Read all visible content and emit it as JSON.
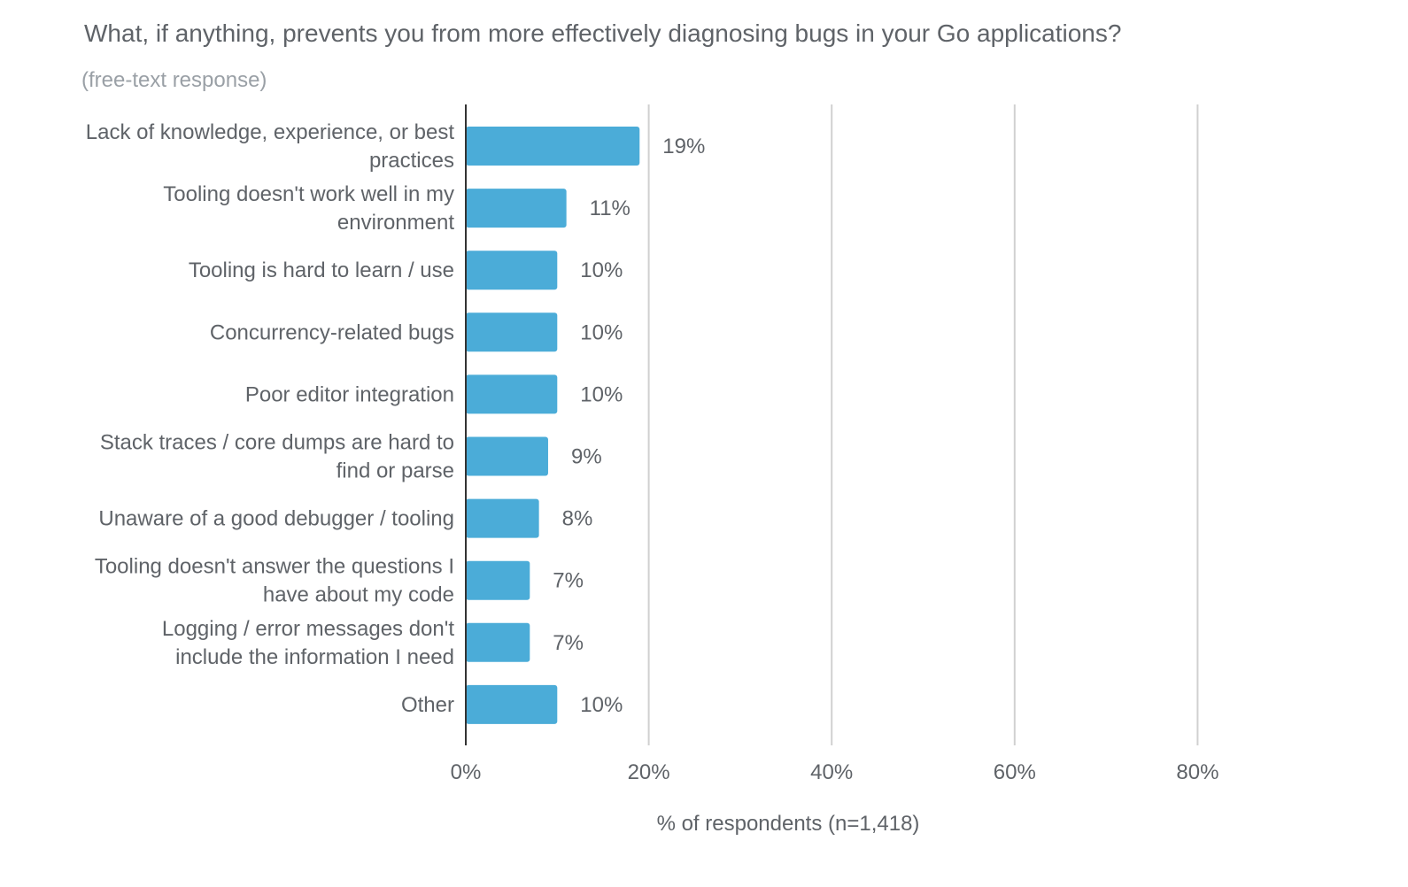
{
  "chart_data": {
    "type": "bar",
    "orientation": "horizontal",
    "title": "What, if anything, prevents you from more effectively diagnosing bugs in your Go applications?",
    "subtitle": "(free-text response)",
    "xlabel": "% of respondents (n=1,418)",
    "ylabel": "",
    "xlim": [
      0,
      90
    ],
    "ticks": [
      0,
      20,
      40,
      60,
      80
    ],
    "tick_labels": [
      "0%",
      "20%",
      "40%",
      "60%",
      "80%"
    ],
    "grid": true,
    "bar_color": "#4bacd8",
    "categories": [
      [
        "Lack of knowledge, experience, or best",
        "practices"
      ],
      [
        "Tooling doesn't work well in my",
        "environment"
      ],
      [
        "Tooling is hard to learn / use"
      ],
      [
        "Concurrency-related bugs"
      ],
      [
        "Poor editor integration"
      ],
      [
        "Stack traces / core dumps are hard to",
        "find or parse"
      ],
      [
        "Unaware of a good debugger / tooling"
      ],
      [
        "Tooling doesn't answer the questions I",
        "have about my code"
      ],
      [
        "Logging / error messages don't",
        "include the information I need"
      ],
      [
        "Other"
      ]
    ],
    "values": [
      19,
      11,
      10,
      10,
      10,
      9,
      8,
      7,
      7,
      10
    ],
    "value_labels": [
      "19%",
      "11%",
      "10%",
      "10%",
      "10%",
      "9%",
      "8%",
      "7%",
      "7%",
      "10%"
    ]
  }
}
